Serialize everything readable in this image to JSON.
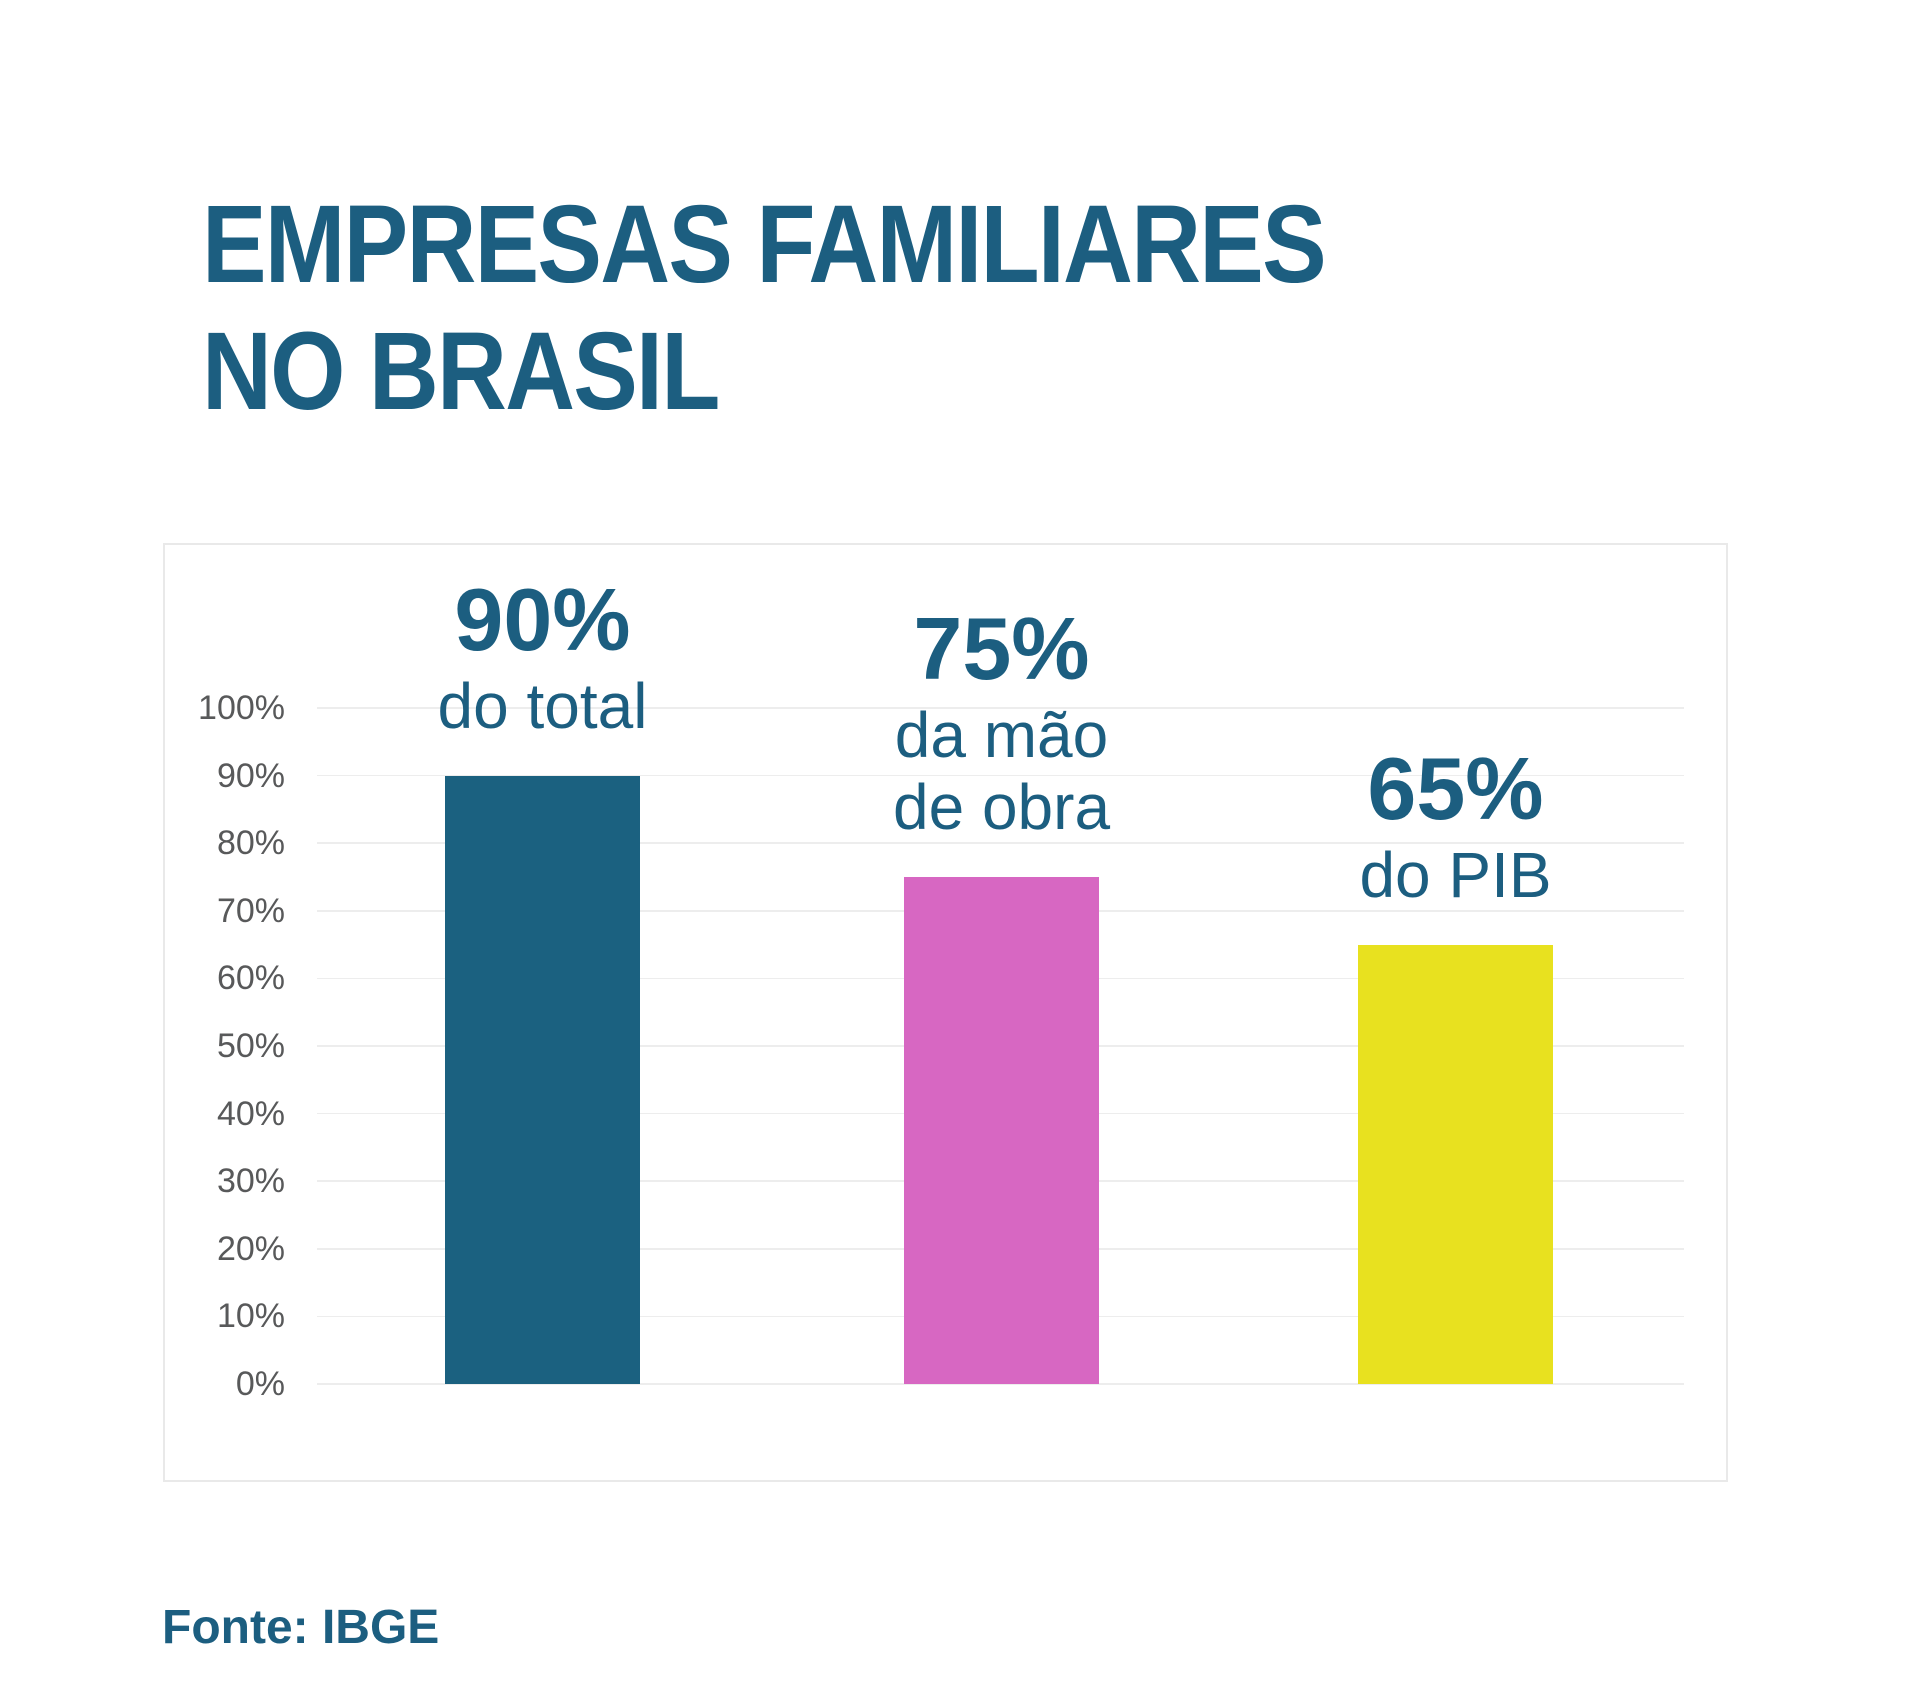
{
  "title": "EMPRESAS FAMILIARES\nNO BRASIL",
  "source": "Fonte: IBGE",
  "colors": {
    "title": "#1c5e80",
    "source": "#1c5e80",
    "label": "#1c5e80",
    "tick": "#58595a",
    "gridline": "#ededed",
    "panel_border": "#e9e9e9",
    "background": "#ffffff"
  },
  "y_axis": {
    "tick_labels": [
      "100%",
      "90%",
      "80%",
      "70%",
      "60%",
      "50%",
      "40%",
      "30%",
      "20%",
      "10%",
      "0%"
    ]
  },
  "bars": [
    {
      "name": "total",
      "value": 90,
      "value_label": "90%",
      "caption": "do total",
      "color": "#1b6180"
    },
    {
      "name": "mao-de-obra",
      "value": 75,
      "value_label": "75%",
      "caption": "da mão\nde obra",
      "color": "#d767c2"
    },
    {
      "name": "pib",
      "value": 65,
      "value_label": "65%",
      "caption": "do PIB",
      "color": "#e8e11f"
    }
  ],
  "chart_data": {
    "type": "bar",
    "title": "EMPRESAS FAMILIARES NO BRASIL",
    "categories": [
      "do total",
      "da mão de obra",
      "do PIB"
    ],
    "values": [
      90,
      75,
      65
    ],
    "data_labels": [
      "90% do total",
      "75% da mão de obra",
      "65% do PIB"
    ],
    "xlabel": "",
    "ylabel": "",
    "ylim": [
      0,
      100
    ],
    "y_ticks": [
      0,
      10,
      20,
      30,
      40,
      50,
      60,
      70,
      80,
      90,
      100
    ],
    "y_tick_format": "percent",
    "grid": "horizontal",
    "legend": "none",
    "bar_colors": [
      "#1b6180",
      "#d767c2",
      "#e8e11f"
    ],
    "source": "Fonte: IBGE"
  }
}
